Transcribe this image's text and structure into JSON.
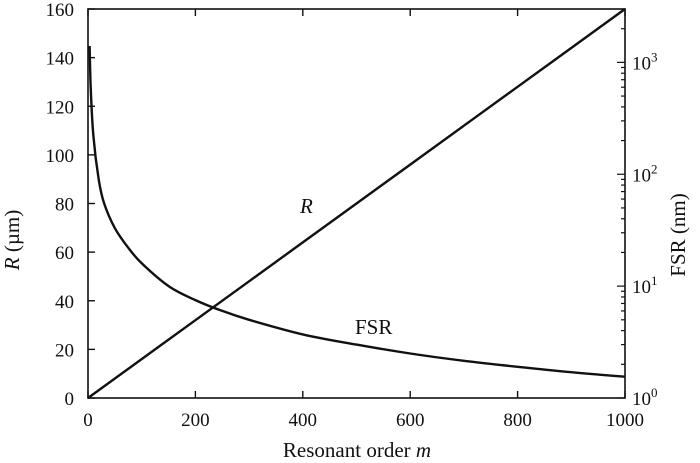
{
  "chart_data": {
    "type": "line",
    "title": "",
    "xlabel": {
      "text": "Resonant order ",
      "var": "m"
    },
    "ylabel_left": {
      "var": "R",
      "text": " (µm)"
    },
    "ylabel_right": "FSR (nm)",
    "xlim": [
      0,
      1000
    ],
    "ylim_left": [
      0,
      160
    ],
    "ylim_right": [
      1,
      3000
    ],
    "y_right_scale": "log",
    "grid": false,
    "x_ticks": [
      0,
      200,
      400,
      600,
      800,
      1000
    ],
    "y_left_ticks": [
      0,
      20,
      40,
      60,
      80,
      100,
      120,
      140,
      160
    ],
    "y_right_ticks": [
      {
        "value": 1,
        "base": "10",
        "exp": "0"
      },
      {
        "value": 10,
        "base": "10",
        "exp": "1"
      },
      {
        "value": 100,
        "base": "10",
        "exp": "2"
      },
      {
        "value": 1000,
        "base": "10",
        "exp": "3"
      }
    ],
    "series": [
      {
        "name": "R",
        "label": "R",
        "axis": "left",
        "x": [
          0,
          200,
          400,
          600,
          800,
          1000
        ],
        "y": [
          0,
          32,
          64,
          96,
          128,
          160
        ]
      },
      {
        "name": "FSR",
        "label": "FSR",
        "axis": "right",
        "x": [
          3,
          5,
          10,
          20,
          30,
          50,
          75,
          100,
          150,
          200,
          250,
          300,
          400,
          500,
          600,
          700,
          800,
          900,
          1000
        ],
        "y": [
          1400,
          600,
          220,
          90,
          55,
          33,
          22,
          16,
          10,
          7.5,
          6,
          5,
          3.7,
          3.0,
          2.5,
          2.15,
          1.9,
          1.7,
          1.55
        ]
      }
    ]
  }
}
